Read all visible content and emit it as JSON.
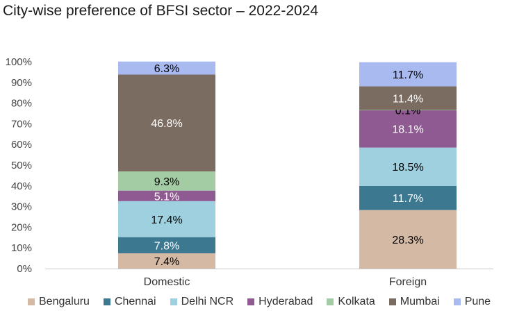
{
  "title": "City-wise preference of BFSI sector – 2022-2024",
  "chart_data": {
    "type": "bar",
    "stacked": true,
    "categories": [
      "Domestic",
      "Foreign"
    ],
    "series": [
      {
        "name": "Bengaluru",
        "color": "#d4b9a4",
        "values": [
          7.4,
          28.3
        ],
        "label_color": "#000000"
      },
      {
        "name": "Chennai",
        "color": "#3d7891",
        "values": [
          7.8,
          11.7
        ],
        "label_color": "#ffffff"
      },
      {
        "name": "Delhi NCR",
        "color": "#9fd0df",
        "values": [
          17.4,
          18.5
        ],
        "label_color": "#000000"
      },
      {
        "name": "Hyderabad",
        "color": "#8f5a91",
        "values": [
          5.1,
          18.1
        ],
        "label_color": "#ffffff"
      },
      {
        "name": "Kolkata",
        "color": "#a3cba4",
        "values": [
          9.3,
          0.1
        ],
        "label_color": "#000000"
      },
      {
        "name": "Mumbai",
        "color": "#7b6c62",
        "values": [
          46.8,
          11.4
        ],
        "label_color": "#ffffff"
      },
      {
        "name": "Pune",
        "color": "#a8baf0",
        "values": [
          6.3,
          11.7
        ],
        "label_color": "#000000"
      }
    ],
    "data_labels": [
      [
        "7.4%",
        "28.3%"
      ],
      [
        "7.8%",
        "11.7%"
      ],
      [
        "17.4%",
        "18.5%"
      ],
      [
        "5.1%",
        "18.1%"
      ],
      [
        "9.3%",
        "0.1%"
      ],
      [
        "46.8%",
        "11.4%"
      ],
      [
        "6.3%",
        "11.7%"
      ]
    ],
    "y_ticks": [
      "0%",
      "10%",
      "20%",
      "30%",
      "40%",
      "50%",
      "60%",
      "70%",
      "80%",
      "90%",
      "100%"
    ],
    "ylim": [
      0,
      100
    ],
    "grid": false,
    "legend_position": "bottom"
  }
}
